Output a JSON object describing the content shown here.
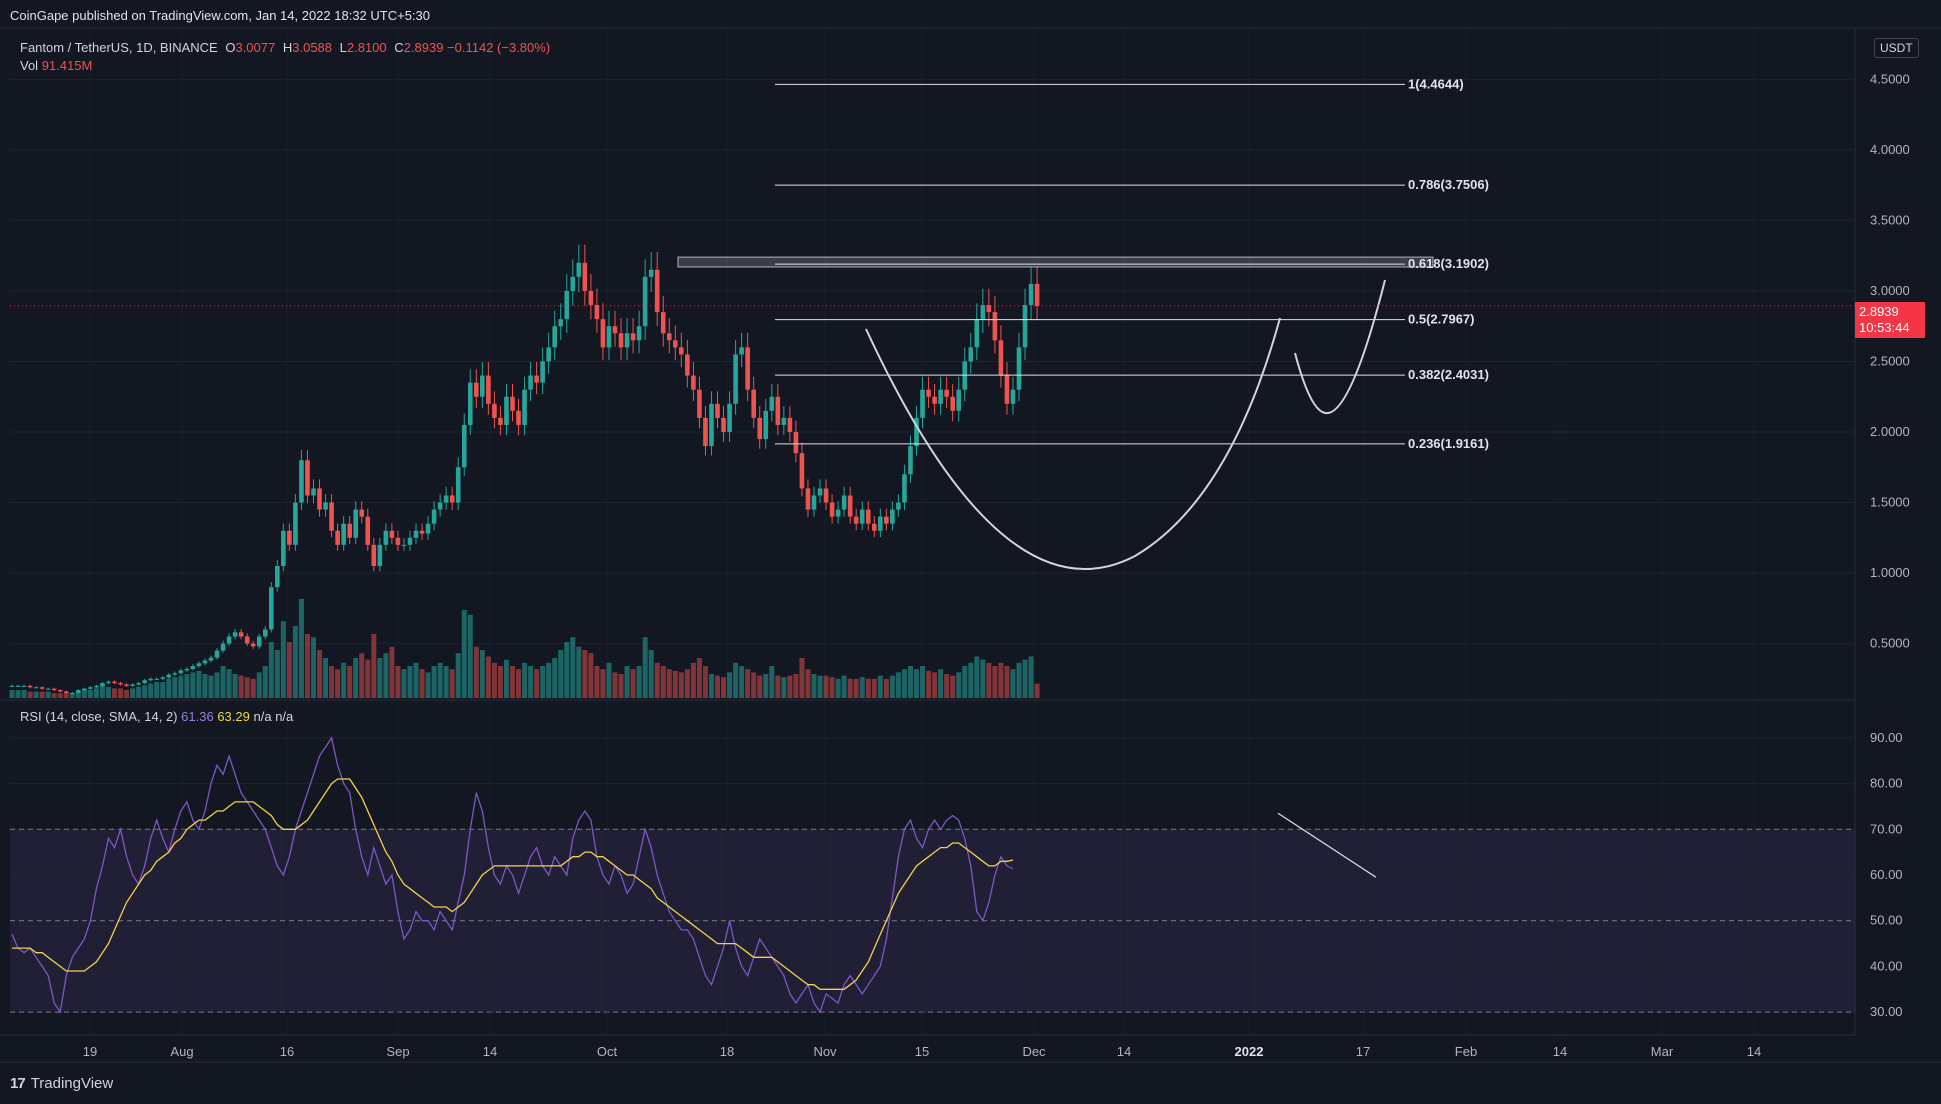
{
  "publisher_text": "CoinGape published on TradingView.com, Jan 14, 2022 18:32 UTC+5:30",
  "brand": {
    "logo": "17",
    "name": "TradingView"
  },
  "legend": {
    "pair": "Fantom / TetherUS, 1D, BINANCE",
    "o_label": "O",
    "o_value": "3.0077",
    "h_label": "H",
    "h_value": "3.0588",
    "l_label": "L",
    "l_value": "2.8100",
    "c_label": "C",
    "c_value": "2.8939",
    "change": "−0.1142 (−3.80%)",
    "vol_label": "Vol",
    "vol_value": "91.415M"
  },
  "rsi_legend": {
    "label": "RSI (14, close, SMA, 14, 2)",
    "rsi_value": "61.36",
    "sma_value": "63.29",
    "na1": "n/a",
    "na2": "n/a"
  },
  "currency": "USDT",
  "price_tag": {
    "price": "2.8939",
    "countdown": "10:53:44"
  },
  "colors": {
    "up": "#26a69a",
    "down": "#ef5350",
    "rsi": "#7e57c2",
    "rsi_sma": "#f2d349",
    "price_tag": "#f23645"
  },
  "chart_data": [
    {
      "type": "candlestick",
      "x_ticks": [
        "19",
        "Aug",
        "16",
        "Sep",
        "14",
        "Oct",
        "18",
        "Nov",
        "15",
        "Dec",
        "14",
        "2022",
        "17",
        "Feb",
        "14",
        "Mar",
        "14"
      ],
      "y_ticks": [
        "4.5000",
        "4.0000",
        "3.5000",
        "3.0000",
        "2.5000",
        "2.0000",
        "1.5000",
        "1.0000",
        "0.5000"
      ],
      "ylim": [
        0.1,
        4.85
      ],
      "current_price": 2.8939,
      "candles_close": [
        0.2,
        0.2,
        0.2,
        0.19,
        0.19,
        0.18,
        0.18,
        0.17,
        0.16,
        0.15,
        0.15,
        0.17,
        0.18,
        0.19,
        0.2,
        0.22,
        0.23,
        0.22,
        0.21,
        0.2,
        0.21,
        0.22,
        0.24,
        0.25,
        0.25,
        0.26,
        0.28,
        0.29,
        0.31,
        0.32,
        0.34,
        0.36,
        0.38,
        0.4,
        0.45,
        0.5,
        0.55,
        0.58,
        0.55,
        0.5,
        0.48,
        0.55,
        0.6,
        0.9,
        1.05,
        1.3,
        1.2,
        1.5,
        1.8,
        1.55,
        1.6,
        1.45,
        1.5,
        1.3,
        1.2,
        1.35,
        1.25,
        1.45,
        1.4,
        1.2,
        1.05,
        1.2,
        1.3,
        1.25,
        1.2,
        1.2,
        1.25,
        1.3,
        1.28,
        1.35,
        1.45,
        1.5,
        1.55,
        1.5,
        1.75,
        2.05,
        2.35,
        2.25,
        2.4,
        2.2,
        2.1,
        2.05,
        2.25,
        2.15,
        2.05,
        2.3,
        2.4,
        2.35,
        2.5,
        2.6,
        2.75,
        2.8,
        3.0,
        3.1,
        3.2,
        3.0,
        2.9,
        2.8,
        2.6,
        2.75,
        2.7,
        2.6,
        2.7,
        2.65,
        2.75,
        3.1,
        3.15,
        2.85,
        2.7,
        2.65,
        2.6,
        2.55,
        2.4,
        2.3,
        2.1,
        1.9,
        2.2,
        2.1,
        2.0,
        2.2,
        2.55,
        2.6,
        2.3,
        2.1,
        1.95,
        2.15,
        2.25,
        2.05,
        2.1,
        2.0,
        1.85,
        1.6,
        1.45,
        1.55,
        1.6,
        1.5,
        1.4,
        1.45,
        1.55,
        1.4,
        1.35,
        1.45,
        1.35,
        1.3,
        1.4,
        1.35,
        1.45,
        1.5,
        1.7,
        1.9,
        2.1,
        2.3,
        2.25,
        2.2,
        2.3,
        2.25,
        2.15,
        2.3,
        2.5,
        2.6,
        2.8,
        2.9,
        2.85,
        2.65,
        2.4,
        2.2,
        2.3,
        2.6,
        2.9,
        3.05,
        2.8939
      ],
      "volume": [
        0.05,
        0.05,
        0.05,
        0.04,
        0.04,
        0.04,
        0.04,
        0.03,
        0.03,
        0.03,
        0.03,
        0.04,
        0.05,
        0.05,
        0.06,
        0.08,
        0.07,
        0.06,
        0.06,
        0.05,
        0.06,
        0.07,
        0.08,
        0.09,
        0.1,
        0.1,
        0.12,
        0.13,
        0.14,
        0.15,
        0.16,
        0.17,
        0.15,
        0.14,
        0.16,
        0.2,
        0.18,
        0.15,
        0.14,
        0.13,
        0.12,
        0.16,
        0.2,
        0.35,
        0.3,
        0.48,
        0.35,
        0.45,
        0.62,
        0.4,
        0.38,
        0.3,
        0.25,
        0.2,
        0.18,
        0.22,
        0.2,
        0.25,
        0.28,
        0.24,
        0.4,
        0.25,
        0.28,
        0.32,
        0.2,
        0.18,
        0.2,
        0.22,
        0.18,
        0.16,
        0.2,
        0.22,
        0.2,
        0.18,
        0.28,
        0.55,
        0.52,
        0.32,
        0.3,
        0.26,
        0.22,
        0.2,
        0.24,
        0.2,
        0.18,
        0.22,
        0.2,
        0.18,
        0.2,
        0.22,
        0.25,
        0.3,
        0.35,
        0.38,
        0.32,
        0.3,
        0.28,
        0.2,
        0.18,
        0.22,
        0.16,
        0.15,
        0.2,
        0.18,
        0.2,
        0.38,
        0.3,
        0.22,
        0.2,
        0.18,
        0.17,
        0.16,
        0.18,
        0.22,
        0.25,
        0.2,
        0.15,
        0.14,
        0.13,
        0.16,
        0.22,
        0.2,
        0.18,
        0.16,
        0.14,
        0.15,
        0.2,
        0.14,
        0.13,
        0.14,
        0.15,
        0.25,
        0.18,
        0.15,
        0.14,
        0.14,
        0.13,
        0.12,
        0.14,
        0.12,
        0.12,
        0.13,
        0.12,
        0.12,
        0.14,
        0.12,
        0.14,
        0.16,
        0.18,
        0.2,
        0.18,
        0.2,
        0.17,
        0.16,
        0.18,
        0.15,
        0.14,
        0.16,
        0.2,
        0.22,
        0.26,
        0.24,
        0.22,
        0.2,
        0.22,
        0.2,
        0.18,
        0.22,
        0.24,
        0.26,
        0.09
      ],
      "fib_levels": [
        {
          "label": "1(4.4644)",
          "value": 4.4644
        },
        {
          "label": "0.786(3.7506)",
          "value": 3.7506
        },
        {
          "label": "0.618(3.1902)",
          "value": 3.1902
        },
        {
          "label": "0.5(2.7967)",
          "value": 2.7967
        },
        {
          "label": "0.382(2.4031)",
          "value": 2.4031
        },
        {
          "label": "0.236(1.9161)",
          "value": 1.9161
        }
      ]
    },
    {
      "type": "line",
      "y_ticks": [
        "90.00",
        "80.00",
        "70.00",
        "60.00",
        "50.00",
        "40.00",
        "30.00"
      ],
      "ylim": [
        25,
        95
      ],
      "bands": [
        70,
        50,
        30
      ],
      "series": [
        {
          "values": [
            47,
            44,
            43,
            44,
            42,
            40,
            38,
            32,
            30,
            38,
            42,
            44,
            46,
            50,
            57,
            62,
            68,
            66,
            70,
            64,
            60,
            58,
            62,
            68,
            72,
            68,
            65,
            70,
            74,
            76,
            72,
            70,
            74,
            80,
            84,
            82,
            86,
            82,
            78,
            76,
            74,
            72,
            70,
            66,
            62,
            60,
            64,
            70,
            74,
            78,
            82,
            86,
            88,
            90,
            84,
            80,
            78,
            70,
            64,
            60,
            66,
            62,
            58,
            60,
            52,
            46,
            48,
            52,
            50,
            50,
            48,
            52,
            50,
            48,
            54,
            60,
            70,
            78,
            74,
            66,
            60,
            58,
            62,
            60,
            56,
            60,
            64,
            66,
            62,
            60,
            64,
            62,
            60,
            68,
            72,
            74,
            72,
            64,
            60,
            58,
            62,
            60,
            56,
            58,
            64,
            70,
            66,
            60,
            56,
            52,
            50,
            48,
            48,
            46,
            42,
            38,
            36,
            40,
            44,
            50,
            44,
            40,
            38,
            42,
            46,
            44,
            42,
            40,
            38,
            34,
            32,
            34,
            36,
            32,
            30,
            34,
            33,
            32,
            36,
            38,
            36,
            34,
            36,
            38,
            40,
            46,
            55,
            64,
            70,
            72,
            68,
            66,
            70,
            72,
            70,
            72,
            73,
            72,
            68,
            62,
            52,
            50,
            54,
            60,
            64,
            62,
            61.36
          ]
        },
        {
          "values": [
            44,
            44,
            44,
            44,
            43,
            43,
            42,
            41,
            40,
            39,
            39,
            39,
            39,
            40,
            41,
            43,
            45,
            48,
            51,
            54,
            56,
            58,
            60,
            61,
            63,
            64,
            65,
            67,
            68,
            70,
            71,
            72,
            72,
            73,
            74,
            74,
            75,
            76,
            76,
            76,
            76,
            75,
            74,
            73,
            71,
            70,
            70,
            70,
            71,
            72,
            74,
            76,
            78,
            80,
            81,
            81,
            81,
            79,
            77,
            74,
            71,
            68,
            65,
            63,
            60,
            58,
            57,
            56,
            55,
            54,
            53,
            53,
            53,
            52,
            53,
            54,
            56,
            58,
            60,
            61,
            62,
            62,
            62,
            62,
            62,
            62,
            62,
            62,
            62,
            62,
            62,
            62,
            63,
            64,
            64,
            65,
            65,
            64,
            64,
            63,
            62,
            61,
            60,
            60,
            59,
            58,
            57,
            55,
            54,
            53,
            52,
            51,
            50,
            49,
            48,
            47,
            46,
            45,
            45,
            45,
            45,
            44,
            43,
            42,
            42,
            42,
            42,
            41,
            40,
            39,
            38,
            37,
            36,
            36,
            35,
            35,
            35,
            35,
            35,
            36,
            37,
            39,
            41,
            44,
            47,
            50,
            53,
            56,
            58,
            60,
            62,
            63,
            64,
            65,
            66,
            66,
            67,
            67,
            66,
            65,
            64,
            63,
            62,
            62,
            63,
            63,
            63.29
          ]
        }
      ]
    }
  ]
}
